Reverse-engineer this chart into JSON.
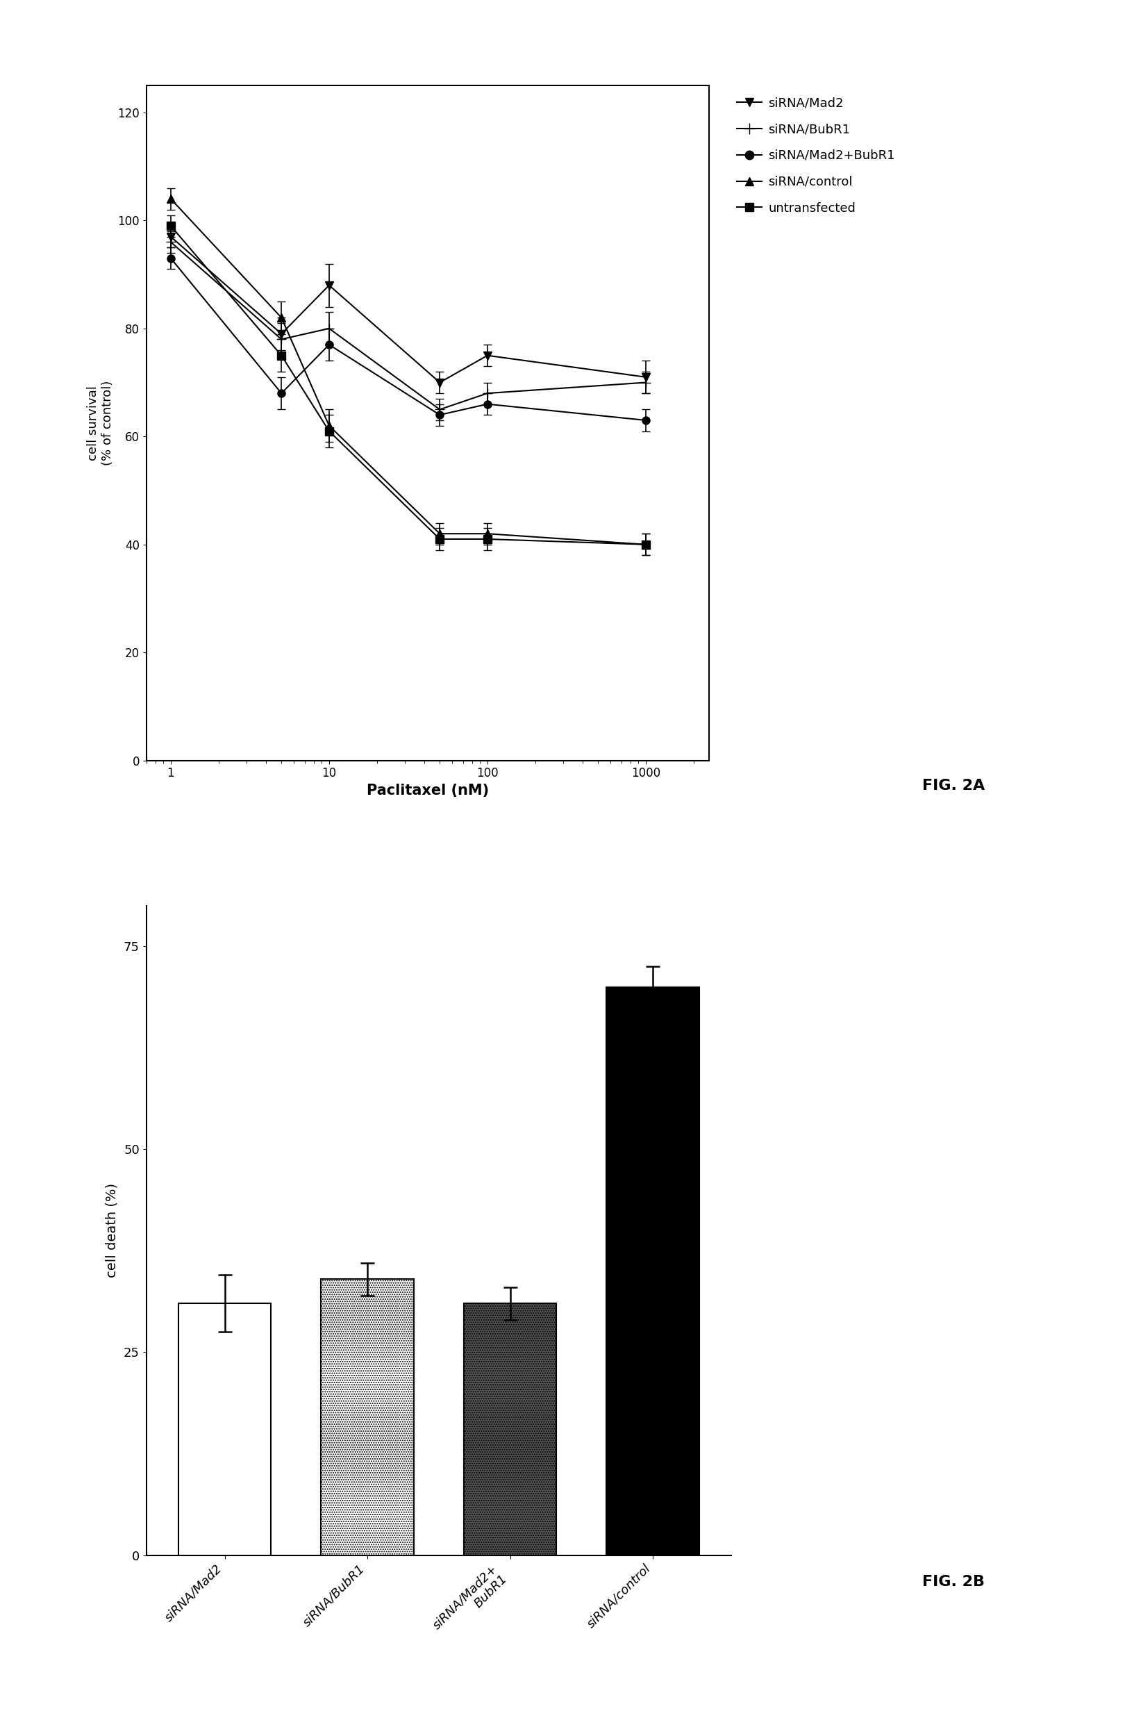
{
  "fig2a": {
    "x_values": [
      1,
      5,
      10,
      50,
      100,
      1000
    ],
    "series": [
      {
        "label": "siRNA/Mad2",
        "y": [
          97,
          79,
          88,
          70,
          75,
          71
        ],
        "yerr": [
          2,
          3,
          4,
          2,
          2,
          3
        ],
        "marker": "v",
        "markerfacecolor": "black",
        "markersize": 8
      },
      {
        "label": "siRNA/BubR1",
        "y": [
          96,
          78,
          80,
          65,
          68,
          70
        ],
        "yerr": [
          2,
          3,
          3,
          2,
          2,
          2
        ],
        "marker": "+",
        "markerfacecolor": "black",
        "markersize": 10
      },
      {
        "label": "siRNA/Mad2+BubR1",
        "y": [
          93,
          68,
          77,
          64,
          66,
          63
        ],
        "yerr": [
          2,
          3,
          3,
          2,
          2,
          2
        ],
        "marker": "o",
        "markerfacecolor": "black",
        "markersize": 8
      },
      {
        "label": "siRNA/control",
        "y": [
          104,
          82,
          62,
          42,
          42,
          40
        ],
        "yerr": [
          2,
          3,
          3,
          2,
          2,
          2
        ],
        "marker": "^",
        "markerfacecolor": "black",
        "markersize": 8
      },
      {
        "label": "untransfected",
        "y": [
          99,
          75,
          61,
          41,
          41,
          40
        ],
        "yerr": [
          2,
          3,
          3,
          2,
          2,
          2
        ],
        "marker": "s",
        "markerfacecolor": "black",
        "markersize": 8
      }
    ],
    "xlabel": "Paclitaxel (nM)",
    "ylabel": "cell survival\n(% of control)",
    "ylim": [
      0,
      125
    ],
    "yticks": [
      0,
      20,
      40,
      60,
      80,
      100,
      120
    ],
    "fig_label": "FIG. 2A"
  },
  "fig2b": {
    "categories": [
      "siRNA/Mad2",
      "siRNA/BubR1",
      "siRNA/Mad2+\nBubR1",
      "siRNA/control"
    ],
    "values": [
      31,
      34,
      31,
      70
    ],
    "errors": [
      3.5,
      2.0,
      2.0,
      2.5
    ],
    "ylabel": "cell death (%)",
    "ylim": [
      0,
      80
    ],
    "yticks": [
      0,
      25,
      50,
      75
    ],
    "fig_label": "FIG. 2B"
  },
  "background_color": "#ffffff",
  "text_color": "#000000"
}
